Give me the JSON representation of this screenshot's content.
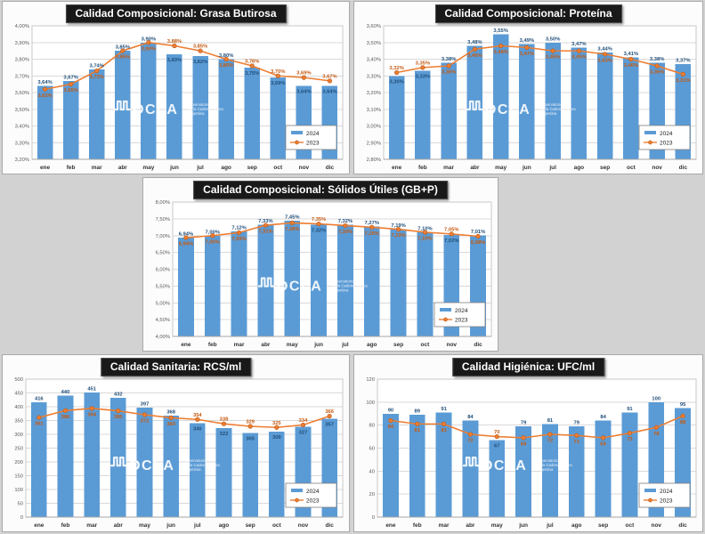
{
  "page": {
    "background": "#d2d2d2"
  },
  "colors": {
    "bar_2024": "#5B9BD5",
    "line_2023": "#ED7D31",
    "marker_edge_2023": "#b2581e",
    "label_2024": "#1F4E79",
    "label_2023": "#C55A11",
    "title_bg": "#191919",
    "title_fg": "#ffffff",
    "gridline": "#d9d9d9",
    "axis_text": "#595959",
    "month_text": "#333333"
  },
  "legend": {
    "items": [
      {
        "label": "2024"
      },
      {
        "label": "2023"
      }
    ]
  },
  "watermark": {
    "brand": "OCLA",
    "lines": [
      "Observatorio",
      "de la Cadena Láctea",
      "Argentina"
    ]
  },
  "chart_data": [
    {
      "type": "bar+line",
      "title": "Calidad Composicional: Grasa Butirosa",
      "categories": [
        "ene",
        "feb",
        "mar",
        "abr",
        "may",
        "jun",
        "jul",
        "ago",
        "sep",
        "oct",
        "nov",
        "dic"
      ],
      "ylim": [
        3.2,
        4.0
      ],
      "ystep": 0.1,
      "format": "percent2",
      "ytick_labels": [
        "4,00%",
        "3,90%",
        "3,80%",
        "3,70%",
        "3,60%",
        "3,50%",
        "3,40%",
        "3,30%",
        "3,20%"
      ],
      "grid": true,
      "legend_position": "bottom-right",
      "series": [
        {
          "name": "2024",
          "type": "bar",
          "values": [
            3.64,
            3.67,
            3.74,
            3.85,
            3.9,
            3.83,
            3.82,
            3.8,
            3.75,
            3.69,
            3.64,
            3.64
          ]
        },
        {
          "name": "2023",
          "type": "line",
          "values": [
            3.62,
            3.65,
            3.73,
            3.85,
            3.9,
            3.88,
            3.85,
            3.8,
            3.76,
            3.7,
            3.69,
            3.67
          ]
        }
      ]
    },
    {
      "type": "bar+line",
      "title": "Calidad Composicional: Proteína",
      "categories": [
        "ene",
        "feb",
        "mar",
        "abr",
        "may",
        "jun",
        "jul",
        "ago",
        "sep",
        "oct",
        "nov",
        "dic"
      ],
      "ylim": [
        2.8,
        3.6
      ],
      "ystep": 0.1,
      "format": "percent2",
      "ytick_labels": [
        "3,60%",
        "3,50%",
        "3,40%",
        "3,30%",
        "3,20%",
        "3,10%",
        "3,00%",
        "2,90%",
        "2,80%"
      ],
      "grid": true,
      "legend_position": "bottom-right",
      "series": [
        {
          "name": "2024",
          "type": "bar",
          "values": [
            3.3,
            3.33,
            3.38,
            3.48,
            3.55,
            3.49,
            3.5,
            3.47,
            3.44,
            3.41,
            3.38,
            3.37
          ]
        },
        {
          "name": "2023",
          "type": "line",
          "values": [
            3.32,
            3.35,
            3.36,
            3.46,
            3.48,
            3.47,
            3.45,
            3.45,
            3.43,
            3.4,
            3.36,
            3.31
          ]
        }
      ]
    },
    {
      "type": "bar+line",
      "title": "Calidad Composicional: Sólidos Útiles (GB+P)",
      "categories": [
        "ene",
        "feb",
        "mar",
        "abr",
        "may",
        "jun",
        "jul",
        "ago",
        "sep",
        "oct",
        "nov",
        "dic"
      ],
      "ylim": [
        4.0,
        8.0
      ],
      "ystep": 0.5,
      "format": "percent2",
      "ytick_labels": [
        "8,00%",
        "7,50%",
        "7,00%",
        "6,50%",
        "6,00%",
        "5,50%",
        "5,00%",
        "4,50%",
        "4,00%"
      ],
      "grid": true,
      "legend_position": "bottom-right",
      "series": [
        {
          "name": "2024",
          "type": "bar",
          "values": [
            6.94,
            7.0,
            7.12,
            7.33,
            7.45,
            7.32,
            7.32,
            7.27,
            7.19,
            7.1,
            7.02,
            7.01
          ]
        },
        {
          "name": "2023",
          "type": "line",
          "values": [
            6.94,
            7.0,
            7.09,
            7.31,
            7.38,
            7.35,
            7.3,
            7.25,
            7.19,
            7.1,
            7.05,
            6.98
          ]
        }
      ]
    },
    {
      "type": "bar+line",
      "title": "Calidad Sanitaria: RCS/ml",
      "categories": [
        "ene",
        "feb",
        "mar",
        "abr",
        "may",
        "jun",
        "jul",
        "ago",
        "sep",
        "oct",
        "nov",
        "dic"
      ],
      "ylim": [
        0,
        500
      ],
      "ystep": 50,
      "format": "int",
      "ytick_labels": [
        "500",
        "450",
        "400",
        "350",
        "300",
        "250",
        "200",
        "150",
        "100",
        "50",
        "0"
      ],
      "grid": true,
      "legend_position": "bottom-right",
      "series": [
        {
          "name": "2024",
          "type": "bar",
          "values": [
            416,
            440,
            451,
            432,
            397,
            368,
            340,
            322,
            305,
            309,
            327,
            357
          ]
        },
        {
          "name": "2023",
          "type": "line",
          "values": [
            361,
            386,
            394,
            385,
            371,
            360,
            354,
            338,
            329,
            325,
            334,
            366
          ]
        }
      ]
    },
    {
      "type": "bar+line",
      "title": "Calidad Higiénica: UFC/ml",
      "categories": [
        "ene",
        "feb",
        "mar",
        "abr",
        "may",
        "jun",
        "jul",
        "ago",
        "sep",
        "oct",
        "nov",
        "dic"
      ],
      "ylim": [
        0,
        120
      ],
      "ystep": 20,
      "format": "int",
      "ytick_labels": [
        "120",
        "100",
        "80",
        "60",
        "40",
        "20",
        "0"
      ],
      "grid": true,
      "legend_position": "bottom-right",
      "series": [
        {
          "name": "2024",
          "type": "bar",
          "values": [
            90,
            89,
            91,
            84,
            67,
            79,
            81,
            79,
            84,
            91,
            100,
            95
          ]
        },
        {
          "name": "2023",
          "type": "line",
          "values": [
            84,
            81,
            81,
            72,
            70,
            69,
            72,
            71,
            69,
            73,
            78,
            88
          ]
        }
      ]
    }
  ]
}
